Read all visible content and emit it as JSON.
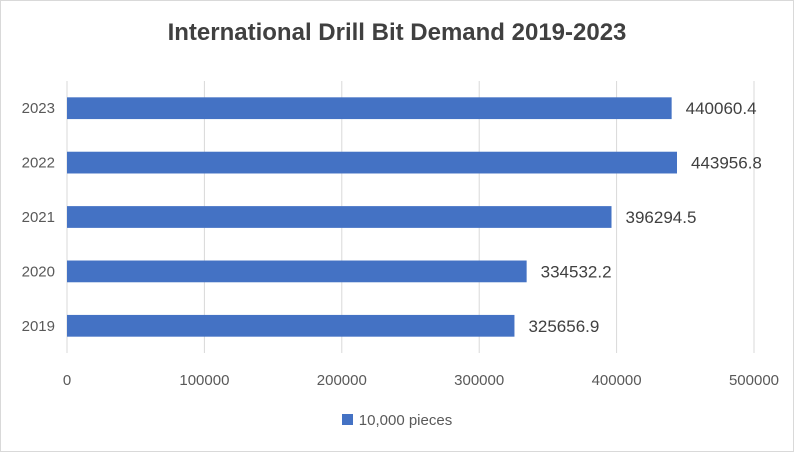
{
  "chart_data": {
    "type": "bar",
    "orientation": "horizontal",
    "title": "International Drill Bit Demand 2019-2023",
    "xlabel": "",
    "ylabel": "",
    "categories": [
      "2023",
      "2022",
      "2021",
      "2020",
      "2019"
    ],
    "series": [
      {
        "name": "10,000 pieces",
        "values": [
          440060.4,
          443956.8,
          396294.5,
          334532.2,
          325656.9
        ],
        "labels": [
          "440060.4",
          "443956.8",
          "396294.5",
          "334532.2",
          "325656.9"
        ]
      }
    ],
    "xlim": [
      0,
      500000
    ],
    "xticks": [
      0,
      100000,
      200000,
      300000,
      400000,
      500000
    ],
    "xtick_labels": [
      "0",
      "100000",
      "200000",
      "300000",
      "400000",
      "500000"
    ],
    "grid": true,
    "legend_position": "bottom",
    "bar_color": "#4472c4",
    "grid_color": "#d9d9d9"
  }
}
